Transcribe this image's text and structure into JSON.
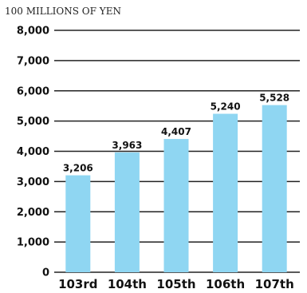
{
  "chart_data": {
    "type": "bar",
    "unit_label": "100 MILLIONS OF YEN",
    "categories": [
      "103rd",
      "104th",
      "105th",
      "106th",
      "107th"
    ],
    "values": [
      3206,
      3963,
      4407,
      5240,
      5528
    ],
    "value_labels": [
      "3,206",
      "3,963",
      "4,407",
      "5,240",
      "5,528"
    ],
    "yticks": [
      0,
      1000,
      2000,
      3000,
      4000,
      5000,
      6000,
      7000,
      8000
    ],
    "ytick_labels": [
      "0",
      "1,000",
      "2,000",
      "3,000",
      "4,000",
      "5,000",
      "6,000",
      "7,000",
      "8,000"
    ],
    "ylim": [
      0,
      8000
    ],
    "grid": true,
    "bar_color": "#8fd6f2"
  }
}
